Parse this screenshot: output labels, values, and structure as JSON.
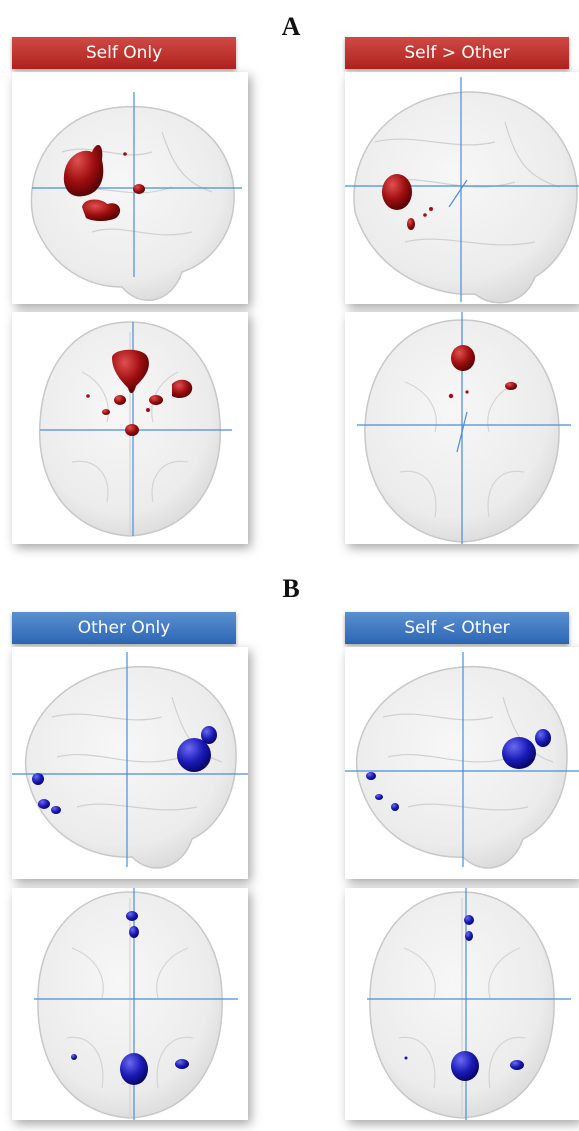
{
  "sections": [
    {
      "letter": "A",
      "panels": [
        {
          "title": "Self Only",
          "color": "#a00f12"
        },
        {
          "title": "Self > Other",
          "color": "#a00f12"
        }
      ]
    },
    {
      "letter": "B",
      "panels": [
        {
          "title": "Other Only",
          "color": "#1414b4"
        },
        {
          "title": "Self < Other",
          "color": "#1414b4"
        }
      ]
    }
  ],
  "crosshair_color": "#4a8fd8"
}
